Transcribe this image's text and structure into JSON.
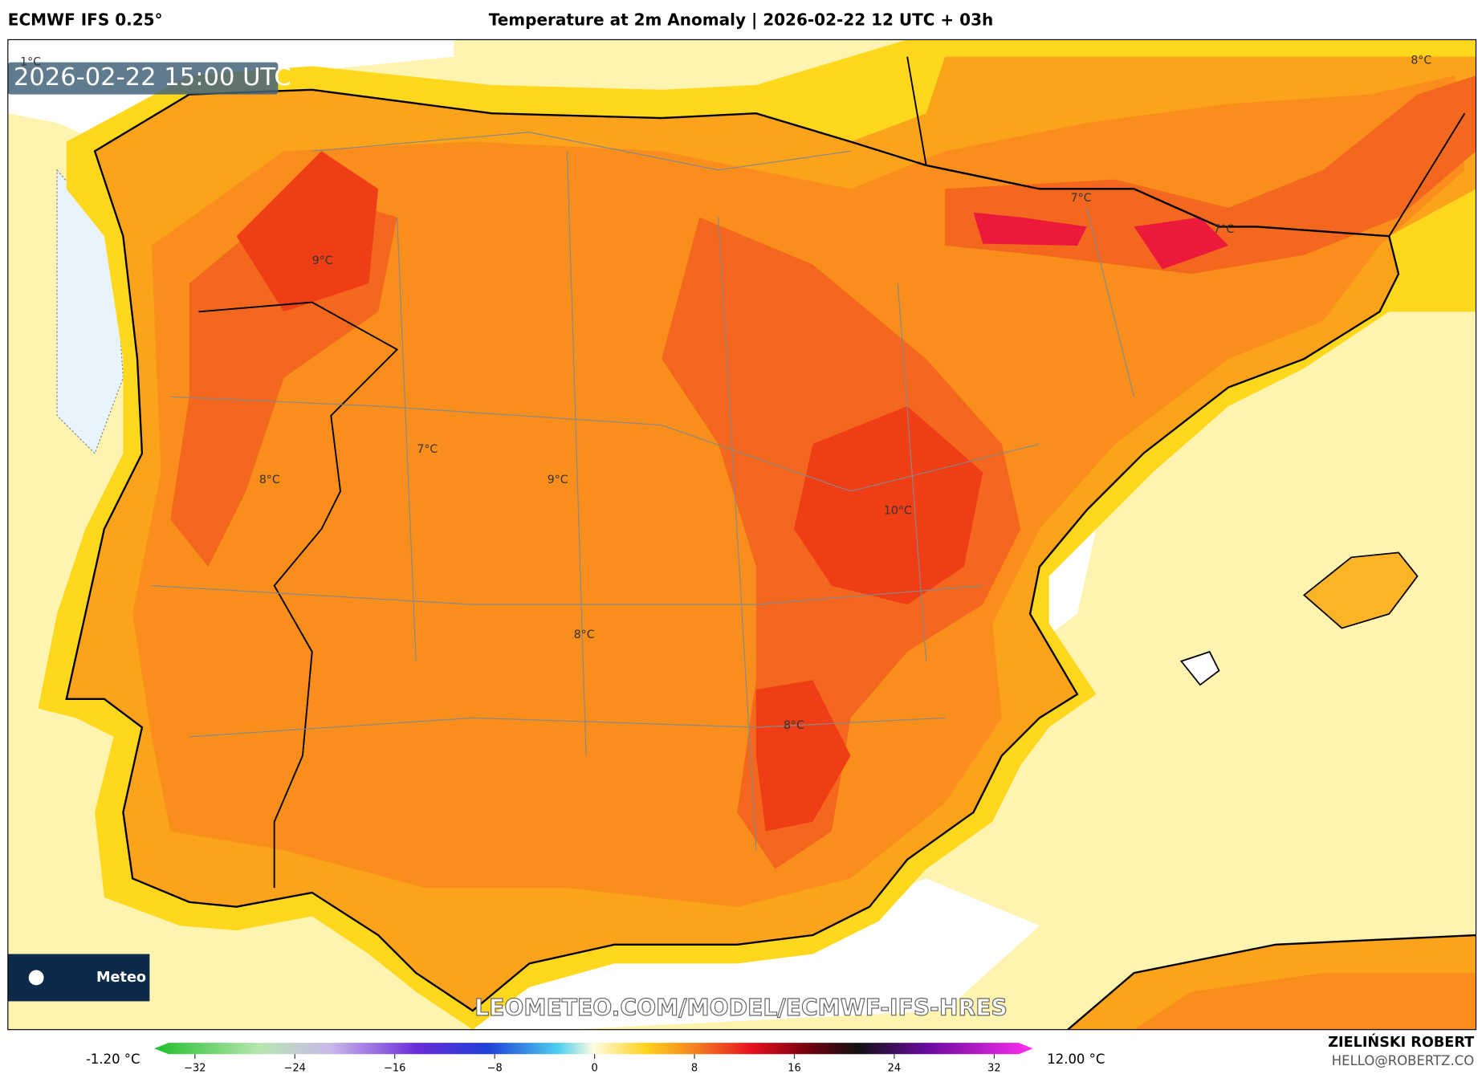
{
  "header": {
    "model": "ECMWF IFS 0.25°",
    "title": "Temperature at 2m Anomaly | 2026-02-22 12 UTC + 03h"
  },
  "map": {
    "timestamp": "2026-02-22 15:00 UTC",
    "labels": [
      "1°C",
      "8°C",
      "9°C",
      "7°C",
      "7°C",
      "7°C",
      "8°C",
      "9°C",
      "10°C",
      "8°C",
      "8°C"
    ],
    "watermark": "LEOMETEO.COM/MODEL/ECMWF-IFS-HRES",
    "logo": "Meteo"
  },
  "colorbar": {
    "min": "-1.20 °C",
    "max": "12.00 °C",
    "ticks": [
      "−32",
      "−24",
      "−16",
      "−8",
      "0",
      "8",
      "16",
      "24",
      "32"
    ]
  },
  "credit": {
    "name": "ZIELIŃSKI ROBERT",
    "email": "HELLO@ROBERTZ.CO"
  }
}
